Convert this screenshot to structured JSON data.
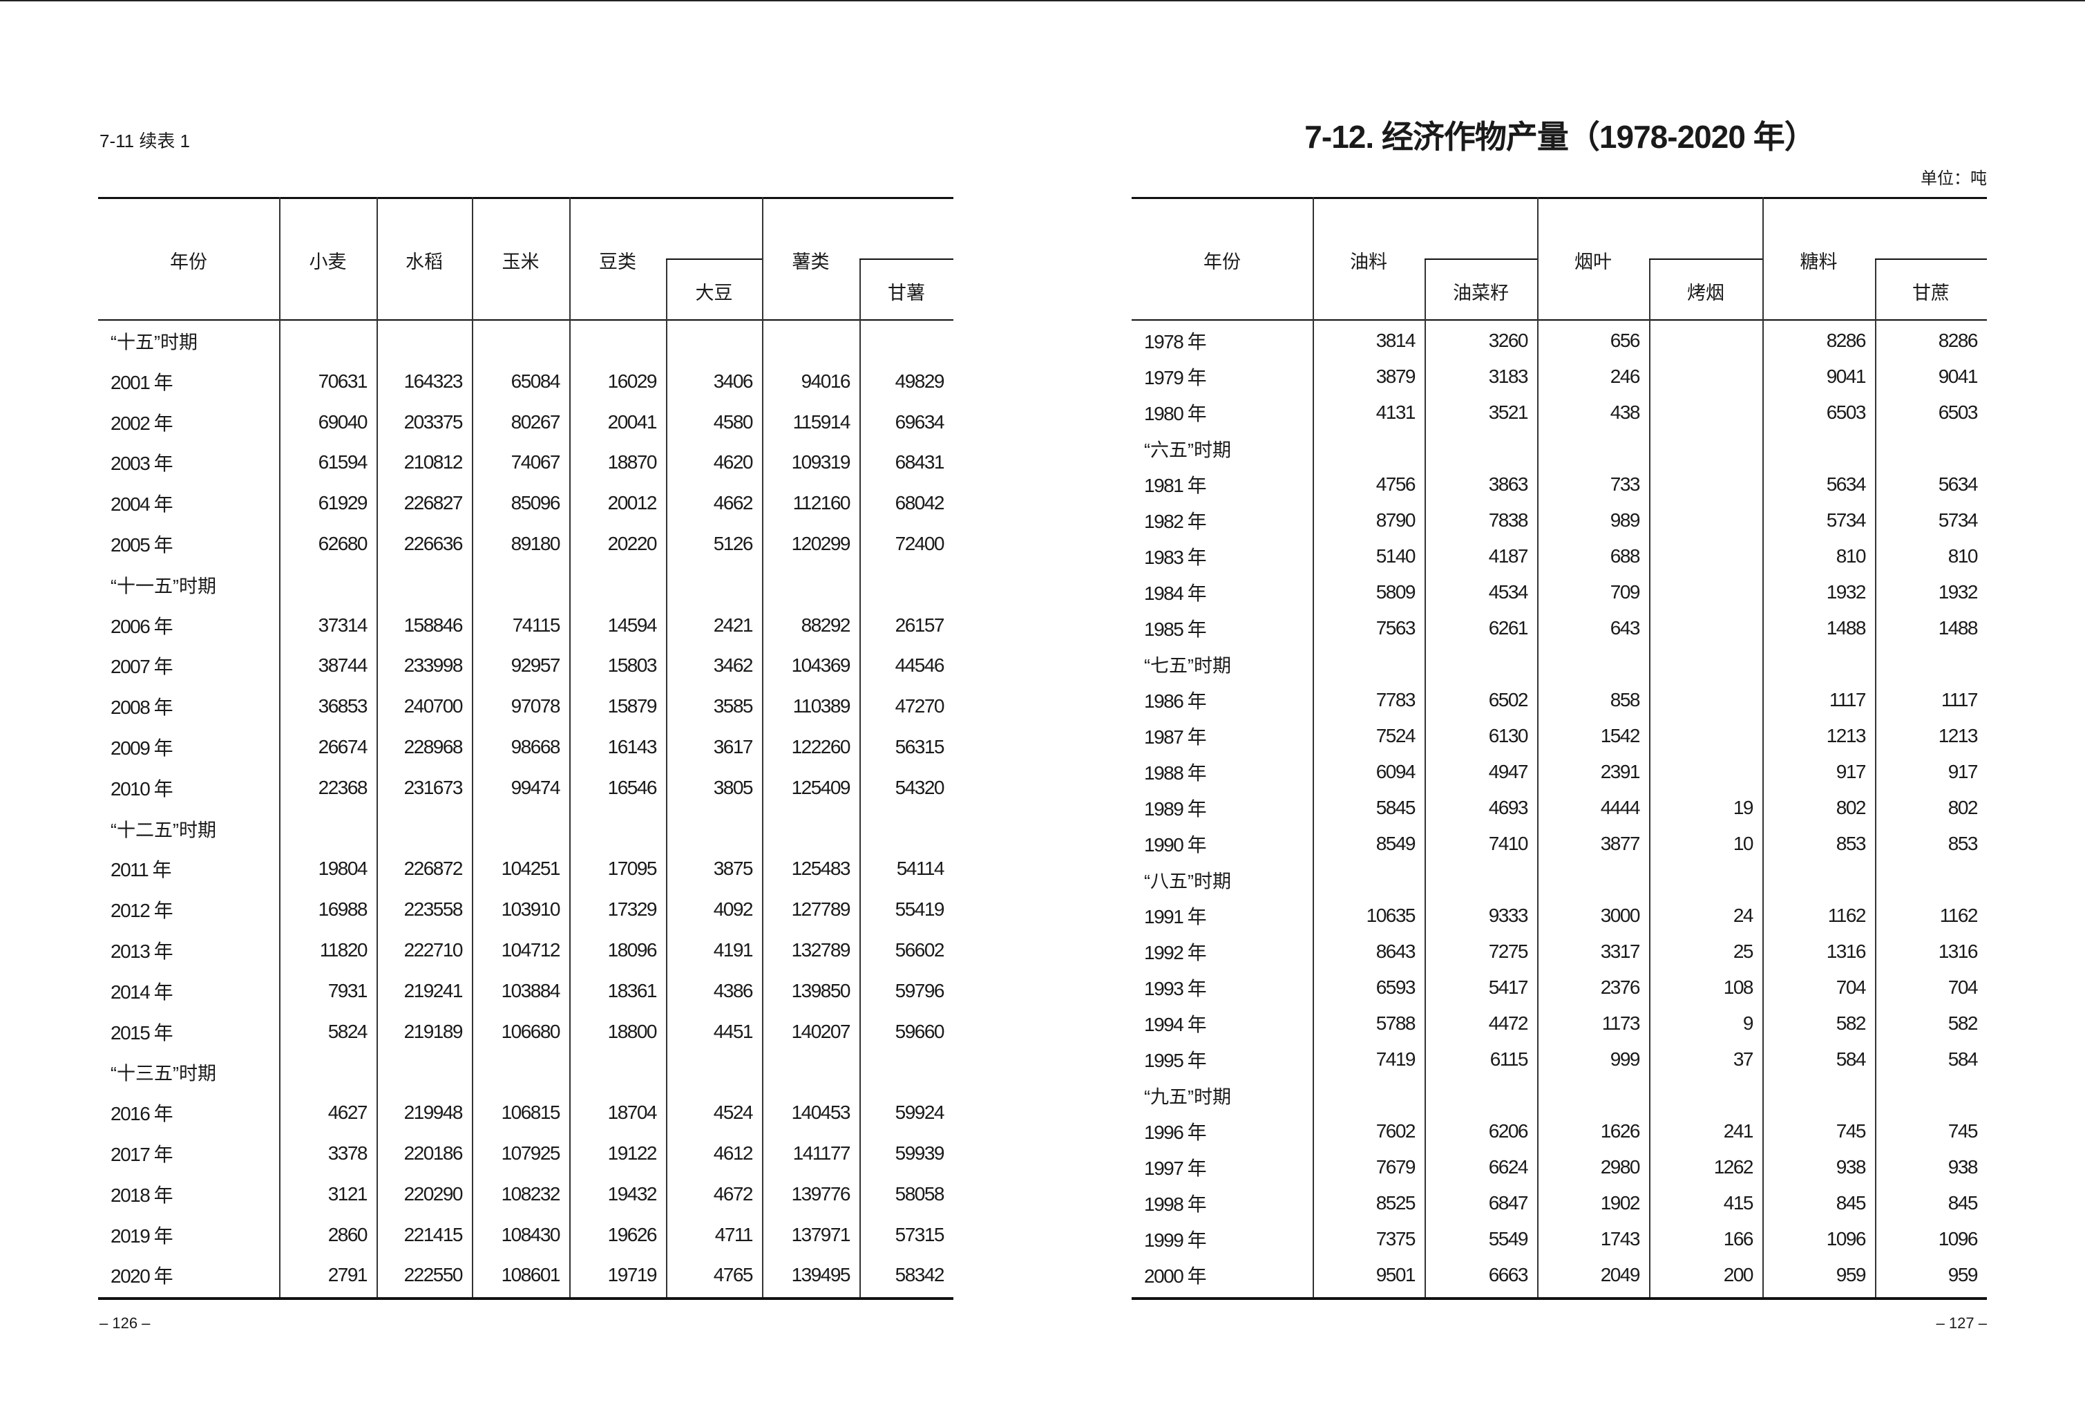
{
  "left_page": {
    "continuation_label": "7-11 续表 1",
    "page_number": "– 126 –",
    "headers": {
      "year": "年份",
      "wheat": "小麦",
      "rice": "水稻",
      "corn": "玉米",
      "beans": "豆类",
      "soybean": "大豆",
      "tubers": "薯类",
      "sweet_potato": "甘薯"
    },
    "rows": [
      {
        "label": "“十五”时期",
        "values": []
      },
      {
        "label": "2001 年",
        "values": [
          "70631",
          "164323",
          "65084",
          "16029",
          "3406",
          "94016",
          "49829"
        ]
      },
      {
        "label": "2002 年",
        "values": [
          "69040",
          "203375",
          "80267",
          "20041",
          "4580",
          "115914",
          "69634"
        ]
      },
      {
        "label": "2003 年",
        "values": [
          "61594",
          "210812",
          "74067",
          "18870",
          "4620",
          "109319",
          "68431"
        ]
      },
      {
        "label": "2004 年",
        "values": [
          "61929",
          "226827",
          "85096",
          "20012",
          "4662",
          "112160",
          "68042"
        ]
      },
      {
        "label": "2005 年",
        "values": [
          "62680",
          "226636",
          "89180",
          "20220",
          "5126",
          "120299",
          "72400"
        ]
      },
      {
        "label": "“十一五”时期",
        "values": []
      },
      {
        "label": "2006 年",
        "values": [
          "37314",
          "158846",
          "74115",
          "14594",
          "2421",
          "88292",
          "26157"
        ]
      },
      {
        "label": "2007 年",
        "values": [
          "38744",
          "233998",
          "92957",
          "15803",
          "3462",
          "104369",
          "44546"
        ]
      },
      {
        "label": "2008 年",
        "values": [
          "36853",
          "240700",
          "97078",
          "15879",
          "3585",
          "110389",
          "47270"
        ]
      },
      {
        "label": "2009 年",
        "values": [
          "26674",
          "228968",
          "98668",
          "16143",
          "3617",
          "122260",
          "56315"
        ]
      },
      {
        "label": "2010 年",
        "values": [
          "22368",
          "231673",
          "99474",
          "16546",
          "3805",
          "125409",
          "54320"
        ]
      },
      {
        "label": "“十二五”时期",
        "values": []
      },
      {
        "label": "2011 年",
        "values": [
          "19804",
          "226872",
          "104251",
          "17095",
          "3875",
          "125483",
          "54114"
        ]
      },
      {
        "label": "2012 年",
        "values": [
          "16988",
          "223558",
          "103910",
          "17329",
          "4092",
          "127789",
          "55419"
        ]
      },
      {
        "label": "2013 年",
        "values": [
          "11820",
          "222710",
          "104712",
          "18096",
          "4191",
          "132789",
          "56602"
        ]
      },
      {
        "label": "2014 年",
        "values": [
          "7931",
          "219241",
          "103884",
          "18361",
          "4386",
          "139850",
          "59796"
        ]
      },
      {
        "label": "2015 年",
        "values": [
          "5824",
          "219189",
          "106680",
          "18800",
          "4451",
          "140207",
          "59660"
        ]
      },
      {
        "label": "“十三五”时期",
        "values": []
      },
      {
        "label": "2016 年",
        "values": [
          "4627",
          "219948",
          "106815",
          "18704",
          "4524",
          "140453",
          "59924"
        ]
      },
      {
        "label": "2017 年",
        "values": [
          "3378",
          "220186",
          "107925",
          "19122",
          "4612",
          "141177",
          "59939"
        ]
      },
      {
        "label": "2018 年",
        "values": [
          "3121",
          "220290",
          "108232",
          "19432",
          "4672",
          "139776",
          "58058"
        ]
      },
      {
        "label": "2019 年",
        "values": [
          "2860",
          "221415",
          "108430",
          "19626",
          "4711",
          "137971",
          "57315"
        ]
      },
      {
        "label": "2020 年",
        "values": [
          "2791",
          "222550",
          "108601",
          "19719",
          "4765",
          "139495",
          "58342"
        ]
      }
    ]
  },
  "right_page": {
    "title": "7-12. 经济作物产量（1978-2020 年）",
    "unit": "单位：吨",
    "page_number": "– 127 –",
    "headers": {
      "year": "年份",
      "oilseed": "油料",
      "rapeseed": "油菜籽",
      "tobacco": "烟叶",
      "flue_cured": "烤烟",
      "sugar": "糖料",
      "sugarcane": "甘蔗"
    },
    "rows": [
      {
        "label": "1978 年",
        "values": [
          "3814",
          "3260",
          "656",
          "",
          "8286",
          "8286"
        ]
      },
      {
        "label": "1979 年",
        "values": [
          "3879",
          "3183",
          "246",
          "",
          "9041",
          "9041"
        ]
      },
      {
        "label": "1980 年",
        "values": [
          "4131",
          "3521",
          "438",
          "",
          "6503",
          "6503"
        ]
      },
      {
        "label": "“六五”时期",
        "values": []
      },
      {
        "label": "1981 年",
        "values": [
          "4756",
          "3863",
          "733",
          "",
          "5634",
          "5634"
        ]
      },
      {
        "label": "1982 年",
        "values": [
          "8790",
          "7838",
          "989",
          "",
          "5734",
          "5734"
        ]
      },
      {
        "label": "1983 年",
        "values": [
          "5140",
          "4187",
          "688",
          "",
          "810",
          "810"
        ]
      },
      {
        "label": "1984 年",
        "values": [
          "5809",
          "4534",
          "709",
          "",
          "1932",
          "1932"
        ]
      },
      {
        "label": "1985 年",
        "values": [
          "7563",
          "6261",
          "643",
          "",
          "1488",
          "1488"
        ]
      },
      {
        "label": "“七五”时期",
        "values": []
      },
      {
        "label": "1986 年",
        "values": [
          "7783",
          "6502",
          "858",
          "",
          "1117",
          "1117"
        ]
      },
      {
        "label": "1987 年",
        "values": [
          "7524",
          "6130",
          "1542",
          "",
          "1213",
          "1213"
        ]
      },
      {
        "label": "1988 年",
        "values": [
          "6094",
          "4947",
          "2391",
          "",
          "917",
          "917"
        ]
      },
      {
        "label": "1989 年",
        "values": [
          "5845",
          "4693",
          "4444",
          "19",
          "802",
          "802"
        ]
      },
      {
        "label": "1990 年",
        "values": [
          "8549",
          "7410",
          "3877",
          "10",
          "853",
          "853"
        ]
      },
      {
        "label": "“八五”时期",
        "values": []
      },
      {
        "label": "1991 年",
        "values": [
          "10635",
          "9333",
          "3000",
          "24",
          "1162",
          "1162"
        ]
      },
      {
        "label": "1992 年",
        "values": [
          "8643",
          "7275",
          "3317",
          "25",
          "1316",
          "1316"
        ]
      },
      {
        "label": "1993 年",
        "values": [
          "6593",
          "5417",
          "2376",
          "108",
          "704",
          "704"
        ]
      },
      {
        "label": "1994 年",
        "values": [
          "5788",
          "4472",
          "1173",
          "9",
          "582",
          "582"
        ]
      },
      {
        "label": "1995 年",
        "values": [
          "7419",
          "6115",
          "999",
          "37",
          "584",
          "584"
        ]
      },
      {
        "label": "“九五”时期",
        "values": []
      },
      {
        "label": "1996 年",
        "values": [
          "7602",
          "6206",
          "1626",
          "241",
          "745",
          "745"
        ]
      },
      {
        "label": "1997 年",
        "values": [
          "7679",
          "6624",
          "2980",
          "1262",
          "938",
          "938"
        ]
      },
      {
        "label": "1998 年",
        "values": [
          "8525",
          "6847",
          "1902",
          "415",
          "845",
          "845"
        ]
      },
      {
        "label": "1999 年",
        "values": [
          "7375",
          "5549",
          "1743",
          "166",
          "1096",
          "1096"
        ]
      },
      {
        "label": "2000 年",
        "values": [
          "9501",
          "6663",
          "2049",
          "200",
          "959",
          "959"
        ]
      }
    ]
  }
}
